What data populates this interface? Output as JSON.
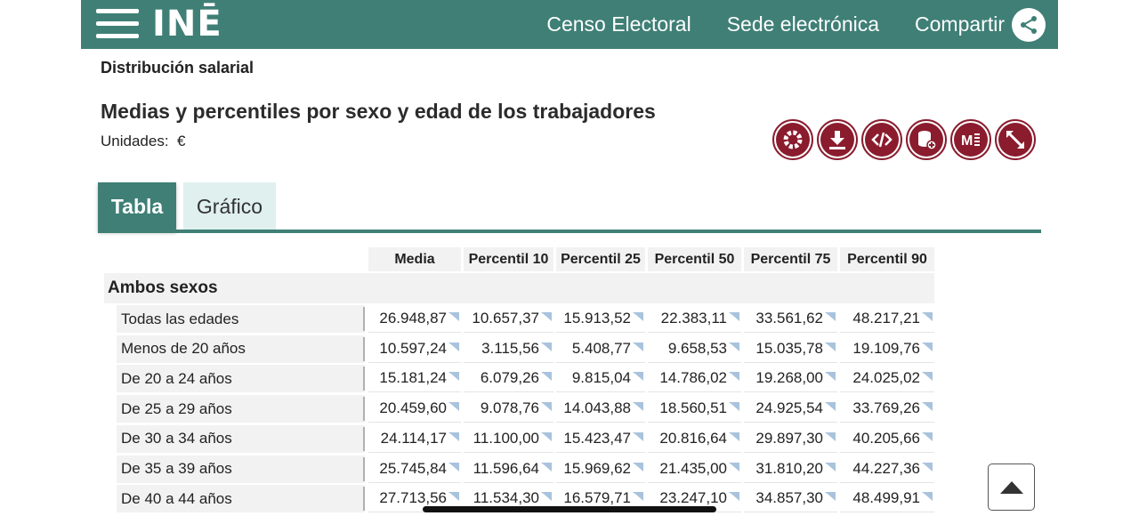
{
  "header": {
    "logo": "INĒ",
    "nav": [
      "Censo Electoral",
      "Sede electrónica",
      "Compartir"
    ]
  },
  "section_title": "Distribución salarial",
  "page_title": "Medias y percentiles por sexo y edad de los trabajadores",
  "units_label": "Unidades:",
  "units_value": "€",
  "tabs": {
    "tabla": "Tabla",
    "grafico": "Gráfico"
  },
  "table": {
    "columns": [
      "Media",
      "Percentil 10",
      "Percentil 25",
      "Percentil 50",
      "Percentil 75",
      "Percentil 90"
    ],
    "group": "Ambos sexos",
    "rows": [
      {
        "label": "Todas las edades",
        "values": [
          "26.948,87",
          "10.657,37",
          "15.913,52",
          "22.383,11",
          "33.561,62",
          "48.217,21"
        ]
      },
      {
        "label": "Menos de 20 años",
        "values": [
          "10.597,24",
          "3.115,56",
          "5.408,77",
          "9.658,53",
          "15.035,78",
          "19.109,76"
        ]
      },
      {
        "label": "De 20 a 24 años",
        "values": [
          "15.181,24",
          "6.079,26",
          "9.815,04",
          "14.786,02",
          "19.268,00",
          "24.025,02"
        ]
      },
      {
        "label": "De 25 a 29 años",
        "values": [
          "20.459,60",
          "9.078,76",
          "14.043,88",
          "18.560,51",
          "24.925,54",
          "33.769,26"
        ]
      },
      {
        "label": "De 30 a 34 años",
        "values": [
          "24.114,17",
          "11.100,00",
          "15.423,47",
          "20.816,64",
          "29.897,30",
          "40.205,66"
        ]
      },
      {
        "label": "De 35 a 39 años",
        "values": [
          "25.745,84",
          "11.596,64",
          "15.969,62",
          "21.435,00",
          "31.810,20",
          "44.227,36"
        ]
      },
      {
        "label": "De 40 a 44 años",
        "values": [
          "27.713,56",
          "11.534,30",
          "16.579,71",
          "23.247,10",
          "34.857,30",
          "48.499,91"
        ]
      }
    ]
  },
  "colors": {
    "brand": "#3f7f76",
    "tool": "#8a1c2e",
    "tab_inactive": "#dff0ee"
  }
}
